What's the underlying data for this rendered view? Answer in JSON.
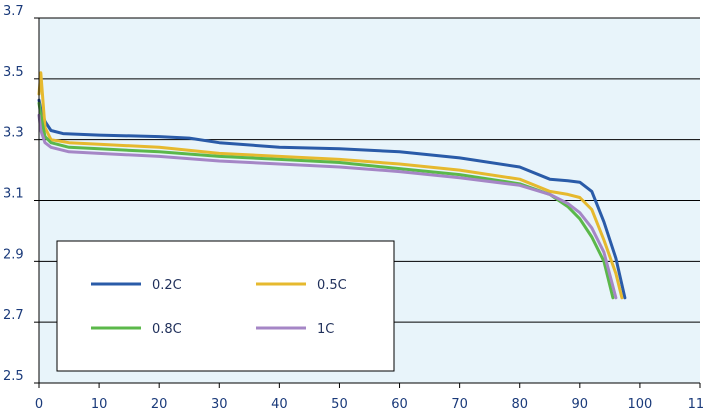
{
  "chart_data": {
    "type": "line",
    "title": "",
    "xlabel": "",
    "ylabel": "",
    "xlim": [
      0,
      110
    ],
    "ylim": [
      2.5,
      3.7
    ],
    "x_ticks": [
      "0",
      "10",
      "20",
      "30",
      "40",
      "50",
      "60",
      "70",
      "80",
      "90",
      "100",
      "110"
    ],
    "y_ticks": [
      "2.5",
      "2.7",
      "2.9",
      "3.1",
      "3.3",
      "3.5",
      "3.7"
    ],
    "grid": "horizontal",
    "plot_background": "#e8f4fa",
    "legend": {
      "placement": "bottom-left",
      "columns": 2
    },
    "series": [
      {
        "name": "0.2C",
        "color": "#2a5ba8",
        "x": [
          0,
          0.3,
          1,
          2,
          4,
          10,
          20,
          25,
          30,
          40,
          50,
          60,
          70,
          80,
          85,
          88,
          90,
          92,
          94,
          96,
          97.5
        ],
        "y": [
          3.43,
          3.4,
          3.36,
          3.33,
          3.32,
          3.315,
          3.31,
          3.305,
          3.29,
          3.275,
          3.27,
          3.26,
          3.24,
          3.21,
          3.17,
          3.165,
          3.16,
          3.13,
          3.03,
          2.91,
          2.78
        ]
      },
      {
        "name": "0.5C",
        "color": "#e6b92e",
        "x": [
          0,
          0.3,
          1,
          2,
          5,
          10,
          20,
          30,
          40,
          50,
          60,
          70,
          80,
          85,
          88,
          90,
          92,
          94,
          96,
          97
        ],
        "y": [
          3.45,
          3.52,
          3.34,
          3.3,
          3.29,
          3.285,
          3.275,
          3.255,
          3.245,
          3.235,
          3.22,
          3.2,
          3.17,
          3.13,
          3.12,
          3.11,
          3.07,
          2.97,
          2.86,
          2.78
        ]
      },
      {
        "name": "0.8C",
        "color": "#5bb84a",
        "x": [
          0,
          0.3,
          1,
          2,
          5,
          10,
          20,
          30,
          40,
          50,
          60,
          70,
          80,
          85,
          88,
          90,
          92,
          94,
          95.5
        ],
        "y": [
          3.42,
          3.38,
          3.31,
          3.29,
          3.275,
          3.27,
          3.26,
          3.245,
          3.235,
          3.225,
          3.205,
          3.185,
          3.155,
          3.12,
          3.08,
          3.04,
          2.98,
          2.9,
          2.78
        ]
      },
      {
        "name": "1C",
        "color": "#a586c6",
        "x": [
          0,
          0.3,
          1,
          2,
          5,
          10,
          20,
          30,
          40,
          50,
          60,
          70,
          80,
          85,
          88,
          90,
          92,
          94,
          96
        ],
        "y": [
          3.38,
          3.33,
          3.29,
          3.275,
          3.26,
          3.255,
          3.245,
          3.23,
          3.22,
          3.21,
          3.195,
          3.175,
          3.15,
          3.12,
          3.09,
          3.06,
          3.01,
          2.93,
          2.78
        ]
      }
    ]
  }
}
